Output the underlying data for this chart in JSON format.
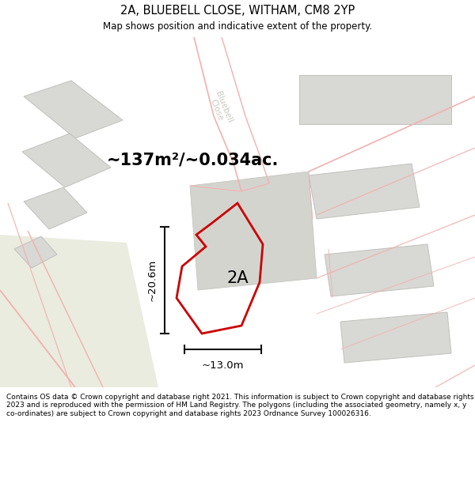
{
  "title": "2A, BLUEBELL CLOSE, WITHAM, CM8 2YP",
  "subtitle": "Map shows position and indicative extent of the property.",
  "footer": "Contains OS data © Crown copyright and database right 2021. This information is subject to Crown copyright and database rights 2023 and is reproduced with the permission of HM Land Registry. The polygons (including the associated geometry, namely x, y co-ordinates) are subject to Crown copyright and database rights 2023 Ordnance Survey 100026316.",
  "area_label": "~137m²/~0.034ac.",
  "label_2a": "2A",
  "dim_width": "~13.0m",
  "dim_height": "~20.6m",
  "street_label": "Bluebell\nClose",
  "map_bg": "#f4f4ef",
  "map_bg_green": "#eaecdf",
  "building_fill": "#d8d8d4",
  "building_edge": "#c0c0bc",
  "pink_line": "#f2b0b0",
  "red_line": "#cc0000",
  "black": "#111111",
  "white": "#ffffff",
  "title_fontsize": 10.5,
  "subtitle_fontsize": 8.5,
  "footer_fontsize": 6.5
}
